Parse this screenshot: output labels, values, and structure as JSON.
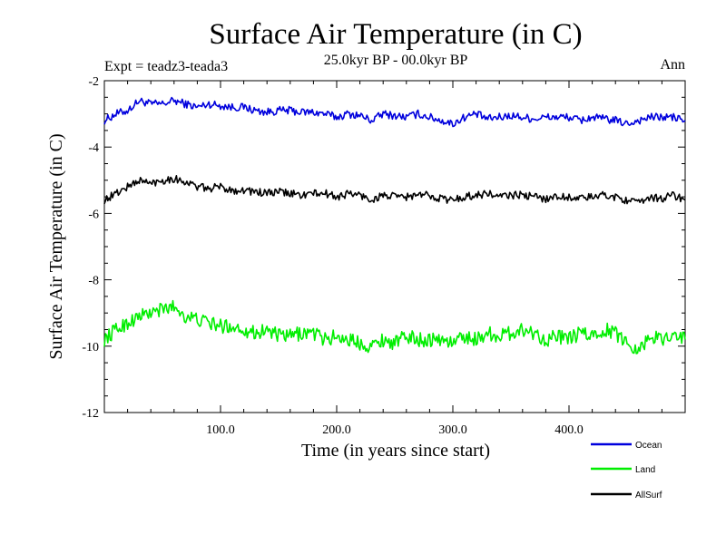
{
  "chart_data": {
    "type": "line",
    "title": "Surface Air Temperature (in C)",
    "subtitle": "25.0kyr BP - 00.0kyr BP",
    "experiment_label": "Expt = teadz3-teada3",
    "season_label": "Ann",
    "xlabel": "Time (in years since start)",
    "ylabel": "Surface Air Temperature (in C)",
    "xlim": [
      0,
      500
    ],
    "ylim": [
      -12,
      -2
    ],
    "x_ticks": [
      100,
      200,
      300,
      400
    ],
    "x_tick_labels": [
      "100.0",
      "200.0",
      "300.0",
      "400.0"
    ],
    "y_ticks": [
      -2,
      -4,
      -6,
      -8,
      -10,
      -12
    ],
    "y_tick_labels": [
      "-2",
      "-4",
      "-6",
      "-8",
      "-10",
      "-12"
    ],
    "legend_position": "bottom-right, below plot",
    "series": [
      {
        "name": "Ocean",
        "color": "#0000dd",
        "x": [
          0,
          10,
          20,
          30,
          40,
          50,
          60,
          70,
          80,
          90,
          100,
          110,
          120,
          130,
          140,
          150,
          160,
          170,
          180,
          190,
          200,
          210,
          220,
          230,
          240,
          250,
          260,
          270,
          280,
          290,
          300,
          310,
          320,
          330,
          340,
          350,
          360,
          370,
          380,
          390,
          400,
          410,
          420,
          430,
          440,
          450,
          460,
          470,
          480,
          490,
          500
        ],
        "values": [
          -3.2,
          -3.0,
          -2.9,
          -2.6,
          -2.7,
          -2.7,
          -2.6,
          -2.7,
          -2.8,
          -2.7,
          -2.75,
          -2.8,
          -2.8,
          -2.9,
          -2.95,
          -2.9,
          -2.9,
          -2.95,
          -2.95,
          -3.0,
          -3.1,
          -3.0,
          -3.05,
          -3.2,
          -3.0,
          -3.05,
          -3.1,
          -3.0,
          -3.1,
          -3.2,
          -3.3,
          -3.1,
          -3.0,
          -3.15,
          -3.1,
          -3.05,
          -3.1,
          -3.15,
          -3.1,
          -3.1,
          -3.1,
          -3.2,
          -3.1,
          -3.15,
          -3.2,
          -3.3,
          -3.2,
          -3.1,
          -3.1,
          -3.1,
          -3.2
        ]
      },
      {
        "name": "Land",
        "color": "#00ee00",
        "x": [
          0,
          10,
          20,
          30,
          40,
          50,
          60,
          70,
          80,
          90,
          100,
          110,
          120,
          130,
          140,
          150,
          160,
          170,
          180,
          190,
          200,
          210,
          220,
          230,
          240,
          250,
          260,
          270,
          280,
          290,
          300,
          310,
          320,
          330,
          340,
          350,
          360,
          370,
          380,
          390,
          400,
          410,
          420,
          430,
          440,
          450,
          460,
          470,
          480,
          490,
          500
        ],
        "values": [
          -9.8,
          -9.5,
          -9.3,
          -9.1,
          -9.0,
          -8.9,
          -8.8,
          -9.1,
          -9.2,
          -9.3,
          -9.4,
          -9.4,
          -9.5,
          -9.6,
          -9.5,
          -9.7,
          -9.7,
          -9.6,
          -9.6,
          -9.8,
          -9.7,
          -9.8,
          -9.9,
          -10.0,
          -9.8,
          -9.9,
          -9.7,
          -9.8,
          -9.8,
          -9.8,
          -9.9,
          -9.7,
          -9.8,
          -9.6,
          -9.7,
          -9.6,
          -9.5,
          -9.6,
          -9.8,
          -9.7,
          -9.8,
          -9.6,
          -9.7,
          -9.5,
          -9.6,
          -9.9,
          -10.1,
          -9.7,
          -9.8,
          -9.6,
          -9.8
        ]
      },
      {
        "name": "AllSurf",
        "color": "#000000",
        "x": [
          0,
          10,
          20,
          30,
          40,
          50,
          60,
          70,
          80,
          90,
          100,
          110,
          120,
          130,
          140,
          150,
          160,
          170,
          180,
          190,
          200,
          210,
          220,
          230,
          240,
          250,
          260,
          270,
          280,
          290,
          300,
          310,
          320,
          330,
          340,
          350,
          360,
          370,
          380,
          390,
          400,
          410,
          420,
          430,
          440,
          450,
          460,
          470,
          480,
          490,
          500
        ],
        "values": [
          -5.6,
          -5.4,
          -5.2,
          -5.0,
          -5.1,
          -5.0,
          -4.95,
          -5.05,
          -5.2,
          -5.25,
          -5.2,
          -5.3,
          -5.3,
          -5.35,
          -5.4,
          -5.35,
          -5.4,
          -5.45,
          -5.4,
          -5.4,
          -5.5,
          -5.4,
          -5.45,
          -5.6,
          -5.45,
          -5.5,
          -5.5,
          -5.45,
          -5.45,
          -5.55,
          -5.6,
          -5.5,
          -5.45,
          -5.4,
          -5.5,
          -5.45,
          -5.45,
          -5.5,
          -5.55,
          -5.5,
          -5.5,
          -5.55,
          -5.5,
          -5.45,
          -5.5,
          -5.6,
          -5.7,
          -5.5,
          -5.55,
          -5.45,
          -5.6
        ]
      }
    ]
  }
}
